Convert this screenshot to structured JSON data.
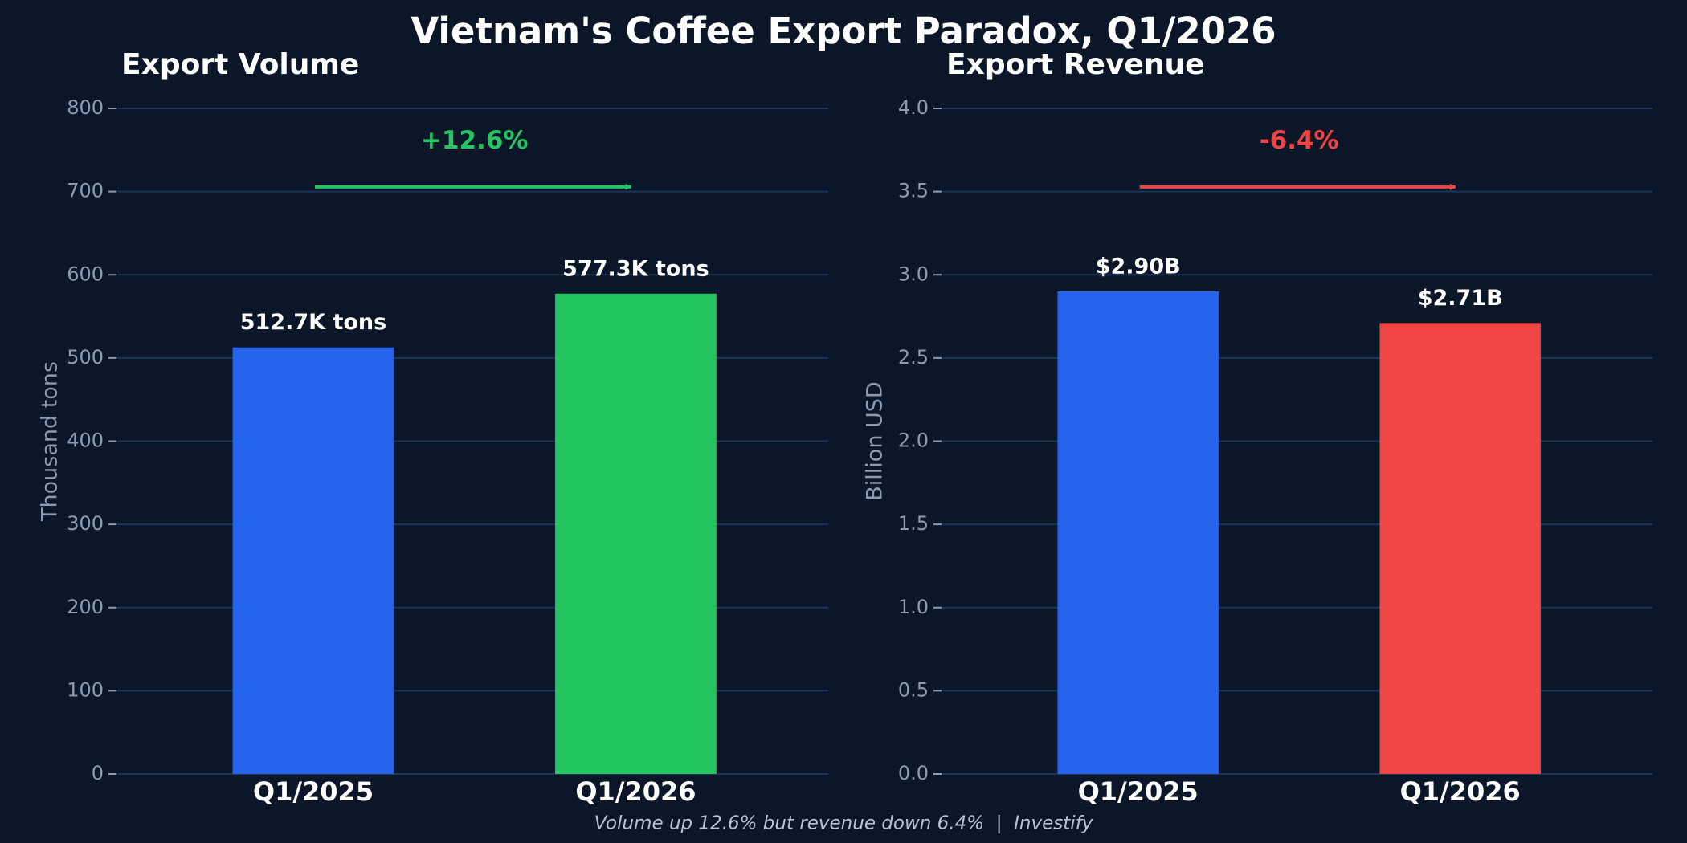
{
  "title": "Vietnam's Coffee Export Paradox, Q1/2026",
  "footer": "Volume up 12.6% but revenue down 6.4%  |  Investify",
  "chart_data": [
    {
      "type": "bar",
      "title": "Export Volume",
      "ylabel": "Thousand tons",
      "categories": [
        "Q1/2025",
        "Q1/2026"
      ],
      "values": [
        512.7,
        577.3
      ],
      "value_labels": [
        "512.7K tons",
        "577.3K tons"
      ],
      "colors": [
        "#2563eb",
        "#22c55e"
      ],
      "ylim": [
        0,
        800
      ],
      "yticks": [
        0,
        100,
        200,
        300,
        400,
        500,
        600,
        700,
        800
      ],
      "grid": true,
      "annotation": "+12.6%",
      "annotation_color": "#22c55e"
    },
    {
      "type": "bar",
      "title": "Export Revenue",
      "ylabel": "Billion USD",
      "categories": [
        "Q1/2025",
        "Q1/2026"
      ],
      "values": [
        2.9,
        2.71
      ],
      "value_labels": [
        "$2.90B",
        "$2.71B"
      ],
      "colors": [
        "#2563eb",
        "#ef4444"
      ],
      "ylim": [
        0,
        4.0
      ],
      "yticks": [
        {
          "value": 0,
          "label": "0.0"
        },
        0.5,
        {
          "value": 1,
          "label": "1.0"
        },
        1.5,
        {
          "value": 2,
          "label": "2.0"
        },
        2.5,
        {
          "value": 3,
          "label": "3.0"
        },
        3.5,
        {
          "value": 4,
          "label": "4.0"
        }
      ],
      "grid": true,
      "annotation": "-6.4%",
      "annotation_color": "#ef4444"
    }
  ]
}
